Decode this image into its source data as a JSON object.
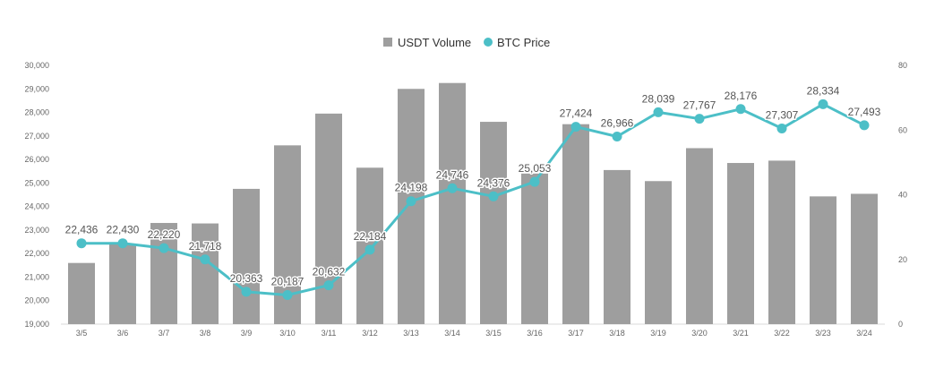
{
  "chart_data": {
    "type": "bar+line",
    "title": "",
    "categories": [
      "3/5",
      "3/6",
      "3/7",
      "3/8",
      "3/9",
      "3/10",
      "3/11",
      "3/12",
      "3/13",
      "3/14",
      "3/15",
      "3/16",
      "3/17",
      "3/18",
      "3/19",
      "3/20",
      "3/21",
      "3/22",
      "3/23",
      "3/24"
    ],
    "series": [
      {
        "name": "USDT Volume",
        "type": "bar",
        "axis": "left",
        "color": "#9e9e9e",
        "values": [
          21600,
          22400,
          23300,
          23280,
          24750,
          26600,
          27950,
          25650,
          29000,
          29250,
          27600,
          25400,
          27500,
          25550,
          25080,
          26480,
          25850,
          25950,
          24430,
          24540
        ]
      },
      {
        "name": "BTC Price",
        "type": "line",
        "axis": "right",
        "color": "#4cbfc7",
        "values": [
          25,
          25,
          23.5,
          20,
          10,
          9,
          12,
          23,
          38,
          42,
          39.5,
          44,
          61,
          58,
          65.5,
          63.5,
          66.5,
          60.5,
          68,
          61.5
        ],
        "labels": [
          "22,436",
          "22,430",
          "22,220",
          "21,718",
          "20,363",
          "20,187",
          "20,632",
          "22,184",
          "24,198",
          "24,746",
          "24,376",
          "25,053",
          "27,424",
          "26,966",
          "28,039",
          "27,767",
          "28,176",
          "27,307",
          "28,334",
          "27,493"
        ]
      }
    ],
    "yLeft": {
      "range": [
        19000,
        30000
      ],
      "ticks": [
        "19,000",
        "20,000",
        "21,000",
        "22,000",
        "23,000",
        "24,000",
        "25,000",
        "26,000",
        "27,000",
        "28,000",
        "29,000",
        "30,000"
      ],
      "tickValues": [
        19000,
        20000,
        21000,
        22000,
        23000,
        24000,
        25000,
        26000,
        27000,
        28000,
        29000,
        30000
      ]
    },
    "yRight": {
      "range": [
        0,
        80
      ],
      "ticks": [
        "0",
        "20",
        "40",
        "60",
        "80"
      ],
      "tickValues": [
        0,
        20,
        40,
        60,
        80
      ]
    },
    "legend": {
      "position": "top-center",
      "items": [
        "USDT Volume",
        "BTC Price"
      ]
    },
    "grid": false
  }
}
